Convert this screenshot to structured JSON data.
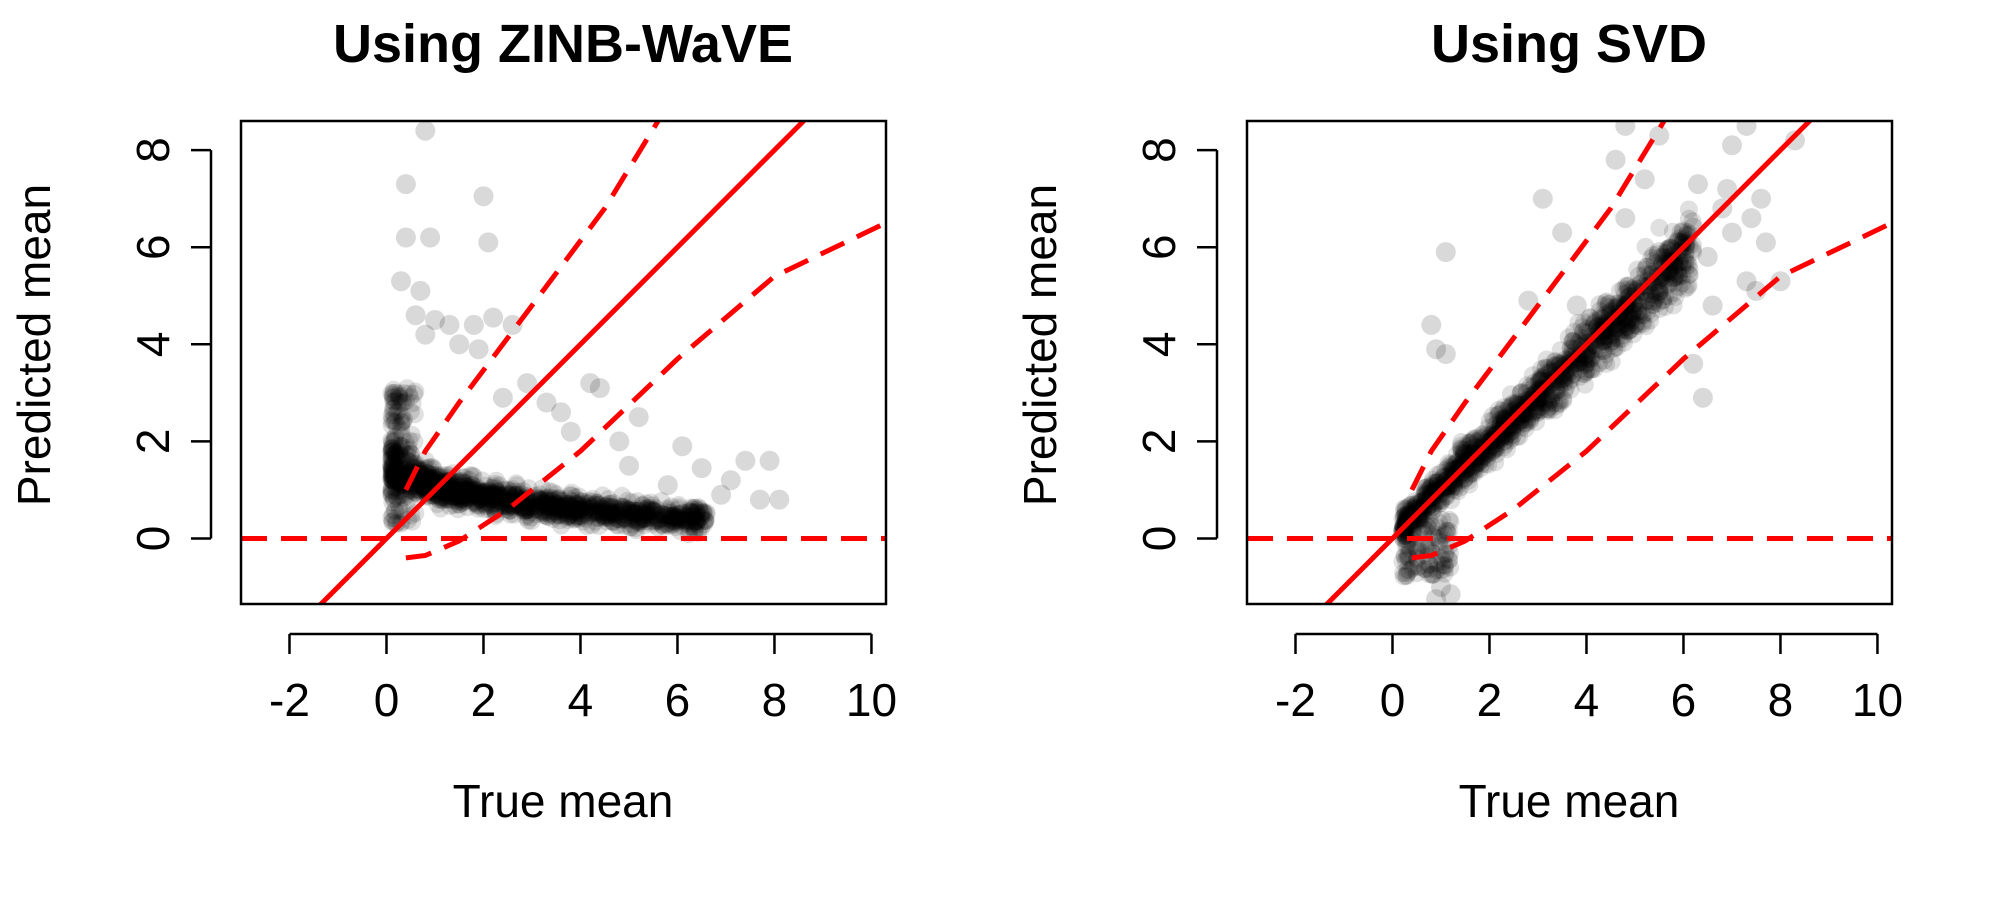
{
  "colors": {
    "background": "#ffffff",
    "points": "#000000",
    "reference_lines": "#ff0000",
    "axes": "#000000"
  },
  "chart_data": [
    {
      "type": "scatter",
      "title": "Using ZINB-WaVE",
      "xlabel": "True mean",
      "ylabel": "Predicted mean",
      "xlim": [
        -3,
        10.3
      ],
      "ylim": [
        -1.35,
        8.6
      ],
      "xticks": [
        -2,
        0,
        2,
        4,
        6,
        8,
        10
      ],
      "yticks": [
        0,
        2,
        4,
        6,
        8
      ],
      "grid": false,
      "point_style": "translucent black filled circles",
      "reference_lines": [
        {
          "style": "solid",
          "intercept": 0,
          "slope": 1
        },
        {
          "style": "dashed",
          "kind": "horizontal",
          "y": 0
        },
        {
          "style": "dashed",
          "kind": "upper_band",
          "points": [
            [
              0.4,
              1.0
            ],
            [
              0.8,
              1.8
            ],
            [
              1.5,
              2.8
            ],
            [
              3,
              4.8
            ],
            [
              4.5,
              6.8
            ],
            [
              5.6,
              8.6
            ]
          ]
        },
        {
          "style": "dashed",
          "kind": "lower_band",
          "points": [
            [
              0.4,
              -0.4
            ],
            [
              0.8,
              -0.35
            ],
            [
              1.5,
              -0.05
            ],
            [
              2.5,
              0.6
            ],
            [
              4,
              1.8
            ],
            [
              6,
              3.7
            ],
            [
              8,
              5.4
            ],
            [
              10.3,
              6.5
            ]
          ]
        }
      ],
      "points": [
        [
          0.8,
          8.4
        ],
        [
          0.4,
          7.3
        ],
        [
          2.0,
          7.05
        ],
        [
          0.4,
          6.2
        ],
        [
          0.9,
          6.2
        ],
        [
          2.1,
          6.1
        ],
        [
          0.3,
          5.3
        ],
        [
          0.7,
          5.1
        ],
        [
          0.6,
          4.6
        ],
        [
          1.0,
          4.5
        ],
        [
          1.3,
          4.4
        ],
        [
          1.8,
          4.4
        ],
        [
          2.2,
          4.55
        ],
        [
          2.6,
          4.4
        ],
        [
          1.5,
          4.0
        ],
        [
          1.9,
          3.9
        ],
        [
          0.8,
          4.2
        ],
        [
          4.2,
          3.2
        ],
        [
          4.4,
          3.1
        ],
        [
          3.3,
          2.8
        ],
        [
          3.6,
          2.6
        ],
        [
          5.2,
          2.5
        ],
        [
          6.1,
          1.9
        ],
        [
          6.5,
          1.45
        ],
        [
          7.4,
          1.6
        ],
        [
          7.9,
          1.6
        ],
        [
          7.1,
          1.2
        ],
        [
          8.1,
          0.8
        ],
        [
          7.7,
          0.8
        ],
        [
          6.9,
          0.9
        ],
        [
          5.8,
          1.1
        ],
        [
          5.0,
          1.5
        ],
        [
          4.8,
          2.0
        ],
        [
          2.9,
          3.2
        ],
        [
          3.8,
          2.2
        ],
        [
          2.4,
          2.9
        ]
      ]
    },
    {
      "type": "scatter",
      "title": "Using SVD",
      "xlabel": "True mean",
      "ylabel": "Predicted mean",
      "xlim": [
        -3,
        10.3
      ],
      "ylim": [
        -1.35,
        8.6
      ],
      "xticks": [
        -2,
        0,
        2,
        4,
        6,
        8,
        10
      ],
      "yticks": [
        0,
        2,
        4,
        6,
        8
      ],
      "grid": false,
      "point_style": "translucent black filled circles",
      "reference_lines": [
        {
          "style": "solid",
          "intercept": 0,
          "slope": 1
        },
        {
          "style": "dashed",
          "kind": "horizontal",
          "y": 0
        },
        {
          "style": "dashed",
          "kind": "upper_band",
          "points": [
            [
              0.4,
              1.0
            ],
            [
              0.8,
              1.8
            ],
            [
              1.5,
              2.8
            ],
            [
              3,
              4.8
            ],
            [
              4.5,
              6.8
            ],
            [
              5.6,
              8.6
            ]
          ]
        },
        {
          "style": "dashed",
          "kind": "lower_band",
          "points": [
            [
              0.4,
              -0.4
            ],
            [
              0.8,
              -0.35
            ],
            [
              1.5,
              -0.05
            ],
            [
              2.5,
              0.6
            ],
            [
              4,
              1.8
            ],
            [
              6,
              3.7
            ],
            [
              8,
              5.4
            ],
            [
              10.3,
              6.5
            ]
          ]
        }
      ],
      "points": [
        [
          4.8,
          8.5
        ],
        [
          5.5,
          8.3
        ],
        [
          7.3,
          8.5
        ],
        [
          7.0,
          8.1
        ],
        [
          8.3,
          8.2
        ],
        [
          4.6,
          7.8
        ],
        [
          3.1,
          7.0
        ],
        [
          5.2,
          7.4
        ],
        [
          6.3,
          7.3
        ],
        [
          6.9,
          7.2
        ],
        [
          7.6,
          7.0
        ],
        [
          6.8,
          6.8
        ],
        [
          7.4,
          6.6
        ],
        [
          7.0,
          6.3
        ],
        [
          7.7,
          6.1
        ],
        [
          6.2,
          6.4
        ],
        [
          5.9,
          6.1
        ],
        [
          4.8,
          6.6
        ],
        [
          3.5,
          6.3
        ],
        [
          6.5,
          5.8
        ],
        [
          7.3,
          5.3
        ],
        [
          8.0,
          5.3
        ],
        [
          7.5,
          5.1
        ],
        [
          6.6,
          4.8
        ],
        [
          5.5,
          5.9
        ],
        [
          1.1,
          5.9
        ],
        [
          2.8,
          4.9
        ],
        [
          3.8,
          4.8
        ],
        [
          0.8,
          4.4
        ],
        [
          6.2,
          3.6
        ],
        [
          6.4,
          2.9
        ],
        [
          0.9,
          3.9
        ],
        [
          1.1,
          3.8
        ],
        [
          1.0,
          -1.0
        ],
        [
          1.2,
          -1.15
        ],
        [
          0.9,
          -1.25
        ]
      ]
    }
  ]
}
